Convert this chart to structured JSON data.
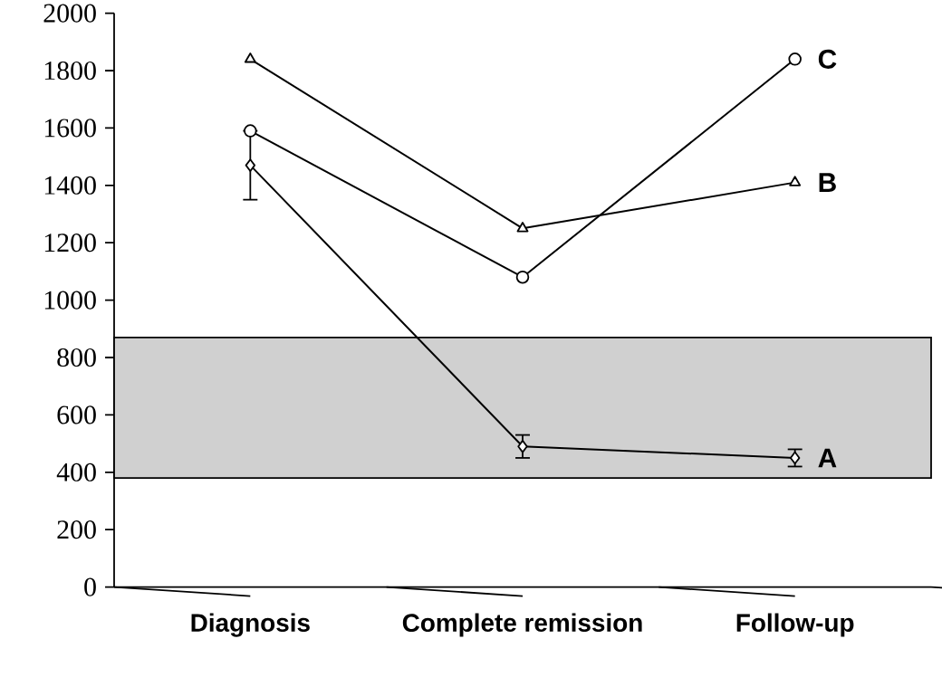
{
  "chart_data": {
    "type": "line",
    "categories": [
      "Diagnosis",
      "Complete remission",
      "Follow-up"
    ],
    "series": [
      {
        "name": "A",
        "color": "#000000",
        "marker": "diamond",
        "values": [
          1470,
          490,
          450
        ],
        "errors": [
          120,
          40,
          30
        ]
      },
      {
        "name": "B",
        "color": "#000000",
        "marker": "triangle",
        "values": [
          1840,
          1250,
          1410
        ]
      },
      {
        "name": "C",
        "color": "#000000",
        "marker": "circle",
        "values": [
          1590,
          1080,
          1840
        ]
      }
    ],
    "ylim": [
      0,
      2000
    ],
    "yticks": [
      0,
      200,
      400,
      600,
      800,
      1000,
      1200,
      1400,
      1600,
      1800,
      2000
    ],
    "bands": [
      {
        "axis": "y",
        "from": 380,
        "to": 870,
        "color": "#d0d0d0"
      }
    ],
    "grid": false
  }
}
